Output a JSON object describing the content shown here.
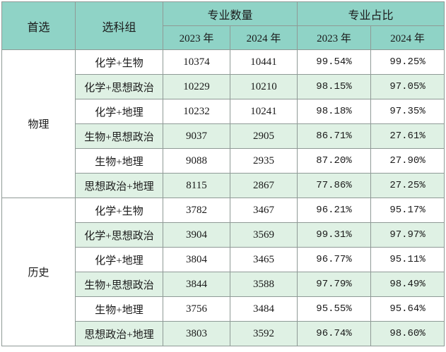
{
  "header": {
    "first_choice": "首选",
    "subject_group": "选科组",
    "count_group": "专业数量",
    "ratio_group": "专业占比",
    "years": [
      "2023 年",
      "2024 年",
      "2023 年",
      "2024 年"
    ]
  },
  "groups": [
    {
      "name": "物理",
      "rows": [
        {
          "combo": "化学+生物",
          "n2023": "10374",
          "n2024": "10441",
          "p2023": "99.54%",
          "p2024": "99.25%"
        },
        {
          "combo": "化学+思想政治",
          "n2023": "10229",
          "n2024": "10210",
          "p2023": "98.15%",
          "p2024": "97.05%"
        },
        {
          "combo": "化学+地理",
          "n2023": "10232",
          "n2024": "10241",
          "p2023": "98.18%",
          "p2024": "97.35%"
        },
        {
          "combo": "生物+思想政治",
          "n2023": "9037",
          "n2024": "2905",
          "p2023": "86.71%",
          "p2024": "27.61%"
        },
        {
          "combo": "生物+地理",
          "n2023": "9088",
          "n2024": "2935",
          "p2023": "87.20%",
          "p2024": "27.90%"
        },
        {
          "combo": "思想政治+地理",
          "n2023": "8115",
          "n2024": "2867",
          "p2023": "77.86%",
          "p2024": "27.25%"
        }
      ]
    },
    {
      "name": "历史",
      "rows": [
        {
          "combo": "化学+生物",
          "n2023": "3782",
          "n2024": "3467",
          "p2023": "96.21%",
          "p2024": "95.17%"
        },
        {
          "combo": "化学+思想政治",
          "n2023": "3904",
          "n2024": "3569",
          "p2023": "99.31%",
          "p2024": "97.97%"
        },
        {
          "combo": "化学+地理",
          "n2023": "3804",
          "n2024": "3465",
          "p2023": "96.77%",
          "p2024": "95.11%"
        },
        {
          "combo": "生物+思想政治",
          "n2023": "3844",
          "n2024": "3588",
          "p2023": "97.79%",
          "p2024": "98.49%"
        },
        {
          "combo": "生物+地理",
          "n2023": "3756",
          "n2024": "3484",
          "p2023": "95.55%",
          "p2024": "95.64%"
        },
        {
          "combo": "思想政治+地理",
          "n2023": "3803",
          "n2024": "3592",
          "p2023": "96.74%",
          "p2024": "98.60%"
        }
      ]
    }
  ]
}
